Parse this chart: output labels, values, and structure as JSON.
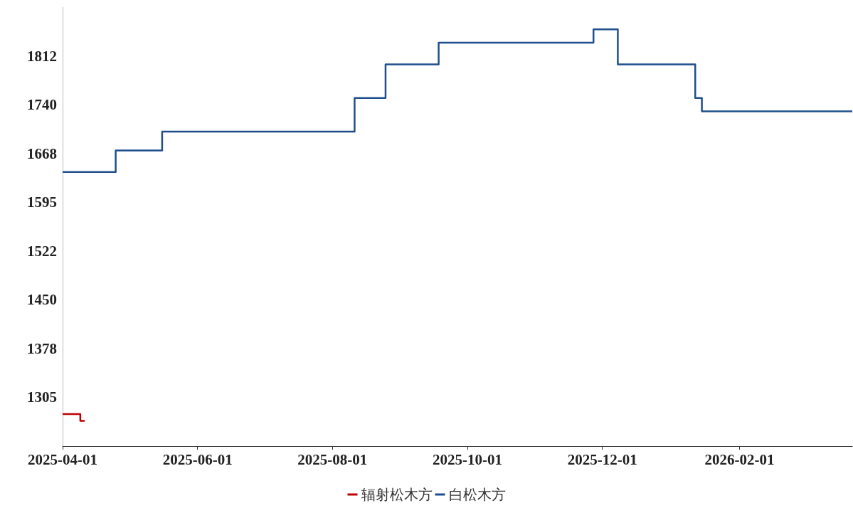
{
  "chart_data": {
    "type": "step",
    "legend": "bottom",
    "grid": false,
    "marker": "none",
    "line_style": "solid",
    "xlim": [
      "2025-04-01",
      "2026-03-24"
    ],
    "xticks": [
      "2025-04-01",
      "2025-06-01",
      "2025-08-01",
      "2025-10-01",
      "2025-12-01",
      "2026-02-01"
    ],
    "ylim": [
      1232.5,
      1885
    ],
    "yticks": [
      {
        "value": 1305,
        "label": "1305"
      },
      {
        "value": 1377.5,
        "label": "1378"
      },
      {
        "value": 1450,
        "label": "1450"
      },
      {
        "value": 1522.5,
        "label": "1522"
      },
      {
        "value": 1595,
        "label": "1595"
      },
      {
        "value": 1667.5,
        "label": "1668"
      },
      {
        "value": 1740,
        "label": "1740"
      },
      {
        "value": 1812.5,
        "label": "1812"
      }
    ],
    "series": [
      {
        "name": "辐射松木方",
        "color": "#c00000",
        "x": [
          "2025-04-01",
          "2025-04-09",
          "2025-04-11"
        ],
        "values": [
          1280,
          1270,
          1270
        ]
      },
      {
        "name": "白松木方",
        "color": "#1f4e8c",
        "x": [
          "2025-04-01",
          "2025-04-25",
          "2025-05-16",
          "2025-08-11",
          "2025-08-25",
          "2025-09-18",
          "2025-11-27",
          "2025-12-08",
          "2026-01-12",
          "2026-01-15",
          "2026-03-24"
        ],
        "values": [
          1640,
          1672,
          1700,
          1750,
          1800,
          1832,
          1852,
          1800,
          1750,
          1730,
          1730
        ]
      }
    ]
  }
}
